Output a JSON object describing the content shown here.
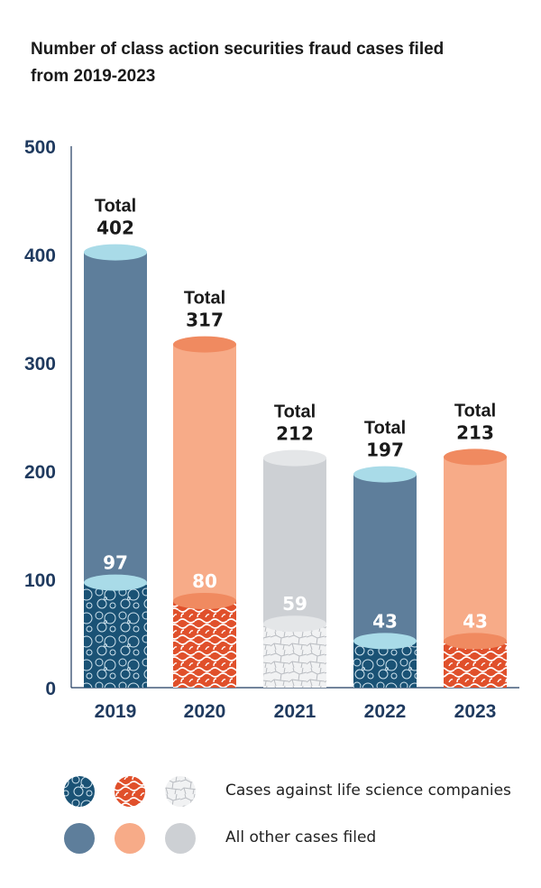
{
  "title_line1": "Number of class action securities fraud cases filed",
  "title_line2": "from 2019-2023",
  "chart_data": {
    "type": "bar",
    "title": "Number of class action securities fraud cases filed from 2019-2023",
    "categories": [
      "2019",
      "2020",
      "2021",
      "2022",
      "2023"
    ],
    "ylim": [
      0,
      500
    ],
    "yticks": [
      0,
      100,
      200,
      300,
      400,
      500
    ],
    "total_prefix": "Total",
    "series": [
      {
        "name": "Cases against life science companies",
        "values": [
          97,
          80,
          59,
          43,
          43
        ]
      },
      {
        "name": "All other cases filed",
        "values": [
          305,
          237,
          153,
          154,
          170
        ]
      }
    ],
    "totals": [
      402,
      317,
      212,
      197,
      213
    ],
    "bar_colors": [
      "#5e7e9b",
      "#f7ab88",
      "#cdd0d4",
      "#5e7e9b",
      "#f7ab88"
    ],
    "cap_colors": [
      "#a9dbe8",
      "#f08a60",
      "#e4e6e8",
      "#a9dbe8",
      "#f08a60"
    ],
    "life_colors": [
      "#1a5275",
      "#e0502b",
      "#c4c7cc",
      "#1a5275",
      "#e0502b"
    ],
    "axis_color": "#1f3a5f"
  },
  "legend": {
    "life_label": "Cases against life science companies",
    "other_label": "All other cases filed",
    "life_swatches": [
      "#1a5275",
      "#e0502b",
      "#c9ccd0"
    ],
    "other_swatches": [
      "#5e7e9b",
      "#f7ab88",
      "#cdd0d4"
    ]
  }
}
